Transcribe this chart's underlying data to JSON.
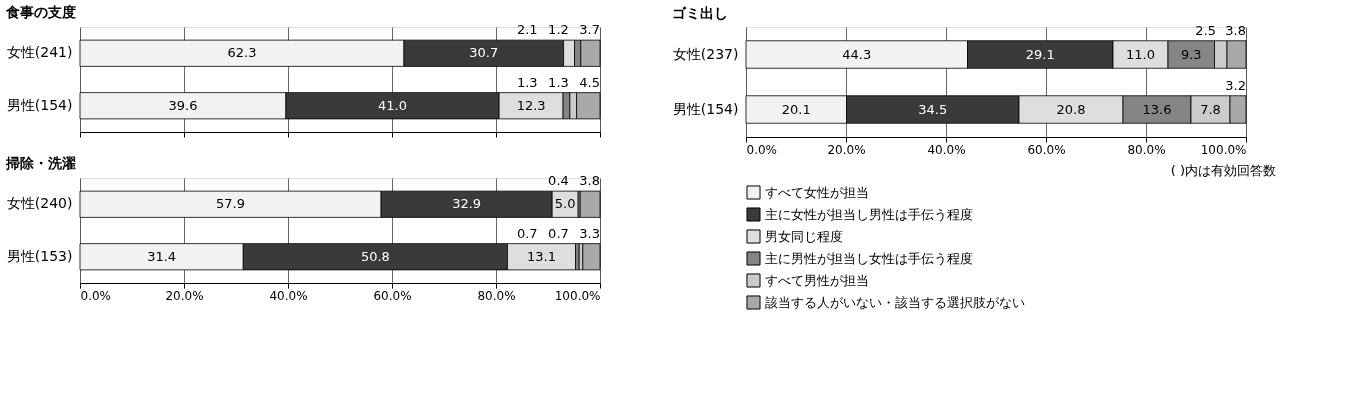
{
  "chart_data": [
    {
      "type": "bar",
      "orientation": "horizontal",
      "stacked": true,
      "title": "食事の支度",
      "categories": [
        "女性(241)",
        "男性(154)"
      ],
      "series": [
        {
          "color": "#f2f2f2",
          "values": [
            62.3,
            39.6
          ],
          "value_labels": [
            "62.3",
            "39.6"
          ]
        },
        {
          "color": "#3a3a3a",
          "values": [
            30.7,
            41.0
          ],
          "value_labels": [
            "30.7",
            "41.0"
          ]
        },
        {
          "color": "#dedede",
          "values": [
            2.1,
            12.3
          ],
          "value_labels": [
            "2.1",
            "12.3"
          ]
        },
        {
          "color": "#858585",
          "values": [
            1.2,
            1.3
          ],
          "value_labels": [
            "1.2",
            "1.3"
          ]
        },
        {
          "color": "#cbcbcb",
          "values": [
            null,
            1.3
          ],
          "value_labels": [
            null,
            "1.3"
          ]
        },
        {
          "color": "#a9a9a9",
          "values": [
            3.7,
            4.5
          ],
          "value_labels": [
            "3.7",
            "4.5"
          ]
        }
      ],
      "xlim": [
        0,
        100
      ],
      "xticks": [
        {
          "value": 0,
          "label": null
        },
        {
          "value": 20,
          "label": null
        },
        {
          "value": 40,
          "label": null
        },
        {
          "value": 60,
          "label": null
        },
        {
          "value": 80,
          "label": null
        },
        {
          "value": 100,
          "label": null
        }
      ],
      "grid": "x",
      "tick_labels": "y"
    },
    {
      "type": "bar",
      "orientation": "horizontal",
      "stacked": true,
      "title": "掃除・洗濯",
      "categories": [
        "女性(240)",
        "男性(153)"
      ],
      "series": [
        {
          "color": "#f2f2f2",
          "values": [
            57.9,
            31.4
          ],
          "value_labels": [
            "57.9",
            "31.4"
          ]
        },
        {
          "color": "#3a3a3a",
          "values": [
            32.9,
            50.8
          ],
          "value_labels": [
            "32.9",
            "50.8"
          ]
        },
        {
          "color": "#dedede",
          "values": [
            5.0,
            13.1
          ],
          "value_labels": [
            "5.0",
            "13.1"
          ]
        },
        {
          "color": "#858585",
          "values": [
            0.4,
            0.7
          ],
          "value_labels": [
            "0.4",
            "0.7"
          ]
        },
        {
          "color": "#cbcbcb",
          "values": [
            null,
            0.7
          ],
          "value_labels": [
            null,
            "0.7"
          ]
        },
        {
          "color": "#a9a9a9",
          "values": [
            3.8,
            3.3
          ],
          "value_labels": [
            "3.8",
            "3.3"
          ]
        }
      ],
      "xlim": [
        0,
        100
      ],
      "xticks": [
        {
          "value": 0,
          "label": "0.0%"
        },
        {
          "value": 20,
          "label": "20.0%"
        },
        {
          "value": 40,
          "label": "40.0%"
        },
        {
          "value": 60,
          "label": "60.0%"
        },
        {
          "value": 80,
          "label": "80.0%"
        },
        {
          "value": 100,
          "label": "100.0%"
        }
      ],
      "grid": "x"
    },
    {
      "type": "bar",
      "orientation": "horizontal",
      "stacked": true,
      "title": "ゴミ出し",
      "categories": [
        "女性(237)",
        "男性(154)"
      ],
      "series": [
        {
          "name": "すべて女性が担当",
          "color": "#f2f2f2",
          "values": [
            44.3,
            20.1
          ],
          "value_labels": [
            "44.3",
            "20.1"
          ]
        },
        {
          "name": "主に女性が担当し男性は手伝う程度",
          "color": "#3a3a3a",
          "values": [
            29.1,
            34.5
          ],
          "value_labels": [
            "29.1",
            "34.5"
          ]
        },
        {
          "name": "男女同じ程度",
          "color": "#dedede",
          "values": [
            11.0,
            20.8
          ],
          "value_labels": [
            "11.0",
            "20.8"
          ]
        },
        {
          "name": "主に男性が担当し女性は手伝う程度",
          "color": "#858585",
          "values": [
            9.3,
            13.6
          ],
          "value_labels": [
            "9.3",
            "13.6"
          ]
        },
        {
          "name": "すべて男性が担当",
          "color": "#cbcbcb",
          "values": [
            2.5,
            7.8
          ],
          "value_labels": [
            "2.5",
            "7.8"
          ]
        },
        {
          "name": "該当する人がいない・該当する選択肢がない",
          "color": "#a9a9a9",
          "values": [
            3.8,
            3.2
          ],
          "value_labels": [
            "3.8",
            "3.2"
          ]
        }
      ],
      "xlim": [
        0,
        100
      ],
      "xticks": [
        {
          "value": 0,
          "label": "0.0%"
        },
        {
          "value": 20,
          "label": "20.0%"
        },
        {
          "value": 40,
          "label": "40.0%"
        },
        {
          "value": 60,
          "label": "60.0%"
        },
        {
          "value": 80,
          "label": "80.0%"
        },
        {
          "value": 100,
          "label": "100.0%"
        }
      ],
      "grid": "x",
      "legend": "bottom",
      "annotations": [
        "( )内は有効回答数"
      ]
    }
  ]
}
